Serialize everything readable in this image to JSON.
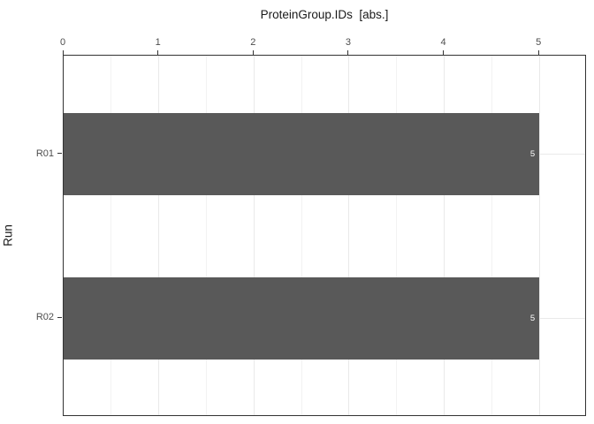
{
  "chart_data": {
    "type": "bar",
    "orientation": "horizontal",
    "title": "ProteinGroup.IDs  [abs.]",
    "ylabel": "Run",
    "xlabel": "",
    "categories": [
      "R01",
      "R02"
    ],
    "values": [
      5,
      5
    ],
    "bar_value_labels": [
      "5",
      "5"
    ],
    "x_ticks": [
      0,
      1,
      2,
      3,
      4,
      5
    ],
    "x_minor_ticks": [
      0.5,
      1.5,
      2.5,
      3.5,
      4.5
    ],
    "xlim": [
      0,
      5.5
    ],
    "axis_position": "top",
    "grid": "on",
    "legend": "none",
    "colors": {
      "bar_fill": "#595959",
      "bar_label_text": "#ffffff",
      "grid_major": "#e9e9e9",
      "grid_minor": "#f2f2f2",
      "panel_border": "#333333",
      "tick_mark": "#333333",
      "axis_text": "#4d4d4d",
      "title_text": "#1a1a1a",
      "background": "#ffffff"
    }
  }
}
